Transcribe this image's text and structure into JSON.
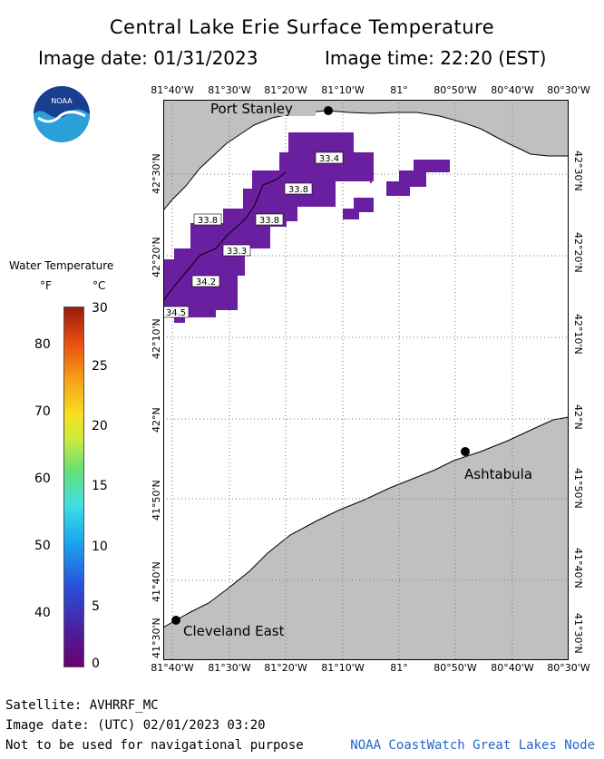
{
  "header": {
    "title": "Central Lake Erie Surface Temperature",
    "image_date": "Image date: 01/31/2023",
    "image_time": "Image time: 22:20 (EST)"
  },
  "logo": {
    "text": "NOAA",
    "icon": "noaa-logo"
  },
  "map": {
    "lon_labels": [
      "81°40'W",
      "81°30'W",
      "81°20'W",
      "81°10'W",
      "81°",
      "80°50'W",
      "80°40'W",
      "80°30'W"
    ],
    "lat_labels": [
      "42°30'N",
      "42°20'N",
      "42°10'N",
      "42°N",
      "41°50'N",
      "41°40'N",
      "41°30'N"
    ],
    "cities": [
      {
        "name": "Port Stanley"
      },
      {
        "name": "Ashtabula"
      },
      {
        "name": "Cleveland East"
      }
    ],
    "temperature_labels": [
      "33.4",
      "33.8",
      "33.8",
      "33.8",
      "33.3",
      "34.2",
      "34.5"
    ],
    "colors": {
      "land": "#c0c0c0",
      "water": "#ffffff",
      "cold_pixel": "#6a1fa0",
      "grid": "#888888"
    }
  },
  "legend": {
    "title": "Water Temperature",
    "unit_f": "°F",
    "unit_c": "°C",
    "f_ticks": [
      "80",
      "70",
      "60",
      "50",
      "40"
    ],
    "c_ticks": [
      "30",
      "25",
      "20",
      "15",
      "10",
      "5",
      "0"
    ]
  },
  "footer": {
    "satellite": "Satellite: AVHRRF_MC",
    "utc_date": "Image date: (UTC) 02/01/2023  03:20",
    "disclaimer": "Not to be used for navigational purpose",
    "credit": "NOAA CoastWatch Great Lakes Node"
  }
}
